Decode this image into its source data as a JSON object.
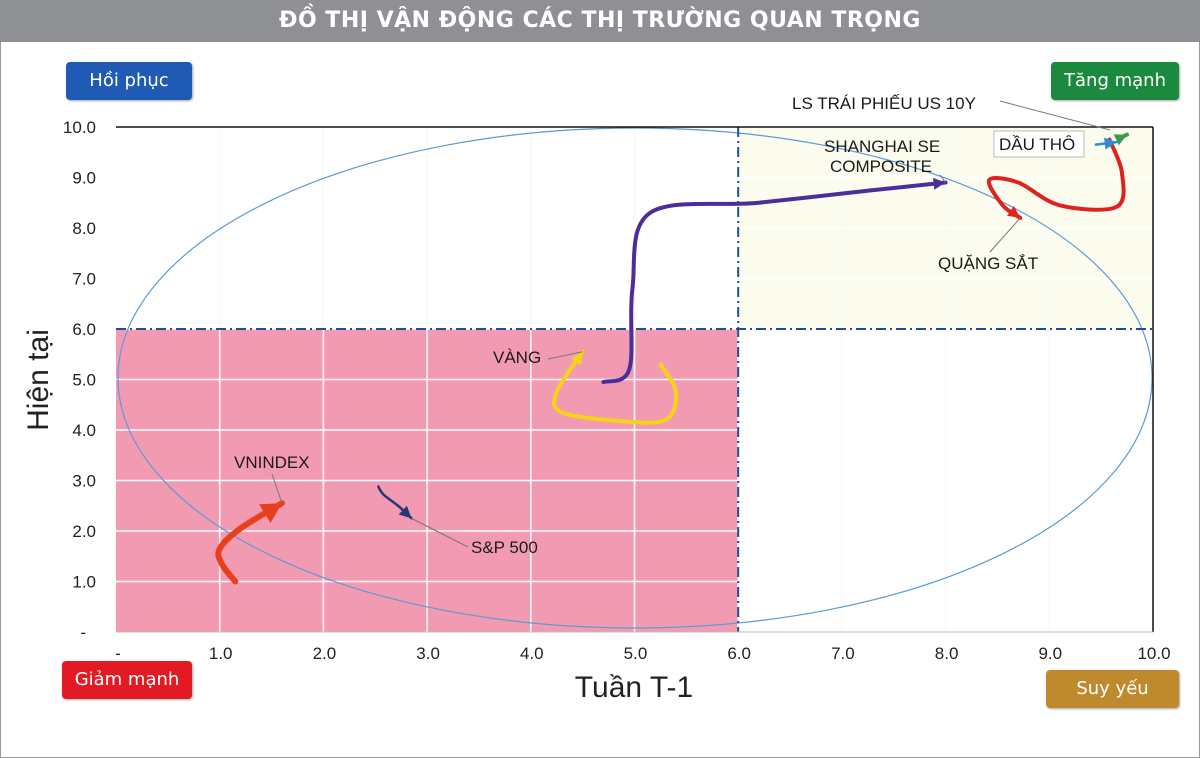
{
  "header": {
    "title": "ĐỒ THỊ VẬN ĐỘNG CÁC THỊ TRƯỜNG QUAN TRỌNG"
  },
  "quadrants": {
    "top_left": "Hồi phục",
    "top_right": "Tăng mạnh",
    "bottom_left": "Giảm mạnh",
    "bottom_right": "Suy yếu"
  },
  "colors": {
    "title_bar": "#8f9093",
    "quadrant_weak_zone": "#f39ab3",
    "quadrant_strong_zone": "#fcfcee",
    "ellipse": "#5b9bd5",
    "threshold_line": "#1f4e99"
  },
  "chart_data": {
    "type": "scatter",
    "xlabel": "Tuần T-1",
    "ylabel": "Hiện tại",
    "xlim": [
      0,
      10
    ],
    "ylim": [
      0,
      10
    ],
    "x_ticks": [
      "-",
      "1.0",
      "2.0",
      "3.0",
      "4.0",
      "5.0",
      "6.0",
      "7.0",
      "8.0",
      "9.0",
      "10.0"
    ],
    "y_ticks": [
      "-",
      "1.0",
      "2.0",
      "3.0",
      "4.0",
      "5.0",
      "6.0",
      "7.0",
      "8.0",
      "9.0",
      "10.0"
    ],
    "threshold": {
      "x": 6.0,
      "y": 6.0
    },
    "grid": true,
    "series": [
      {
        "name": "VNINDEX",
        "color": "#e8401c",
        "path": [
          [
            1.15,
            1.0
          ],
          [
            1.02,
            1.35
          ],
          [
            1.0,
            1.65
          ],
          [
            1.2,
            2.05
          ],
          [
            1.6,
            2.55
          ]
        ]
      },
      {
        "name": "S&P 500",
        "color": "#25377a",
        "path": [
          [
            2.53,
            2.88
          ],
          [
            2.58,
            2.72
          ],
          [
            2.72,
            2.5
          ],
          [
            2.85,
            2.25
          ]
        ]
      },
      {
        "name": "VÀNG",
        "color": "#f5d315",
        "path": [
          [
            5.25,
            5.3
          ],
          [
            5.4,
            4.75
          ],
          [
            5.3,
            4.2
          ],
          [
            4.85,
            4.18
          ],
          [
            4.3,
            4.35
          ],
          [
            4.25,
            4.75
          ],
          [
            4.5,
            5.55
          ]
        ]
      },
      {
        "name": "SHANGHAI SE COMPOSITE",
        "color": "#4b2e9c",
        "path": [
          [
            4.7,
            4.95
          ],
          [
            4.95,
            5.2
          ],
          [
            4.98,
            6.8
          ],
          [
            5.15,
            8.3
          ],
          [
            6.2,
            8.5
          ],
          [
            7.3,
            8.75
          ],
          [
            8.0,
            8.9
          ]
        ]
      },
      {
        "name": "QUẶNG SẮT",
        "color": "#e0221f",
        "path": [
          [
            9.58,
            9.75
          ],
          [
            9.7,
            9.1
          ],
          [
            9.65,
            8.42
          ],
          [
            9.1,
            8.45
          ],
          [
            8.7,
            8.9
          ],
          [
            8.42,
            8.95
          ],
          [
            8.55,
            8.45
          ],
          [
            8.72,
            8.2
          ]
        ]
      },
      {
        "name": "DẦU THÔ",
        "color": "#2c8fd6",
        "path": [
          [
            9.45,
            9.65
          ],
          [
            9.65,
            9.7
          ]
        ]
      },
      {
        "name": "LS TRÁI PHIẾU US 10Y",
        "color": "#3a9b4a",
        "path": [
          [
            9.72,
            9.82
          ],
          [
            9.75,
            9.85
          ]
        ]
      }
    ],
    "labels": {
      "vnindex": "VNINDEX",
      "sp500": "S&P 500",
      "gold": "VÀNG",
      "shanghai_line1": "SHANGHAI SE",
      "shanghai_line2": "COMPOSITE",
      "iron_ore": "QUẶNG SẮT",
      "crude_oil": "DẦU THÔ",
      "us10y": "LS TRÁI PHIẾU US 10Y"
    }
  }
}
